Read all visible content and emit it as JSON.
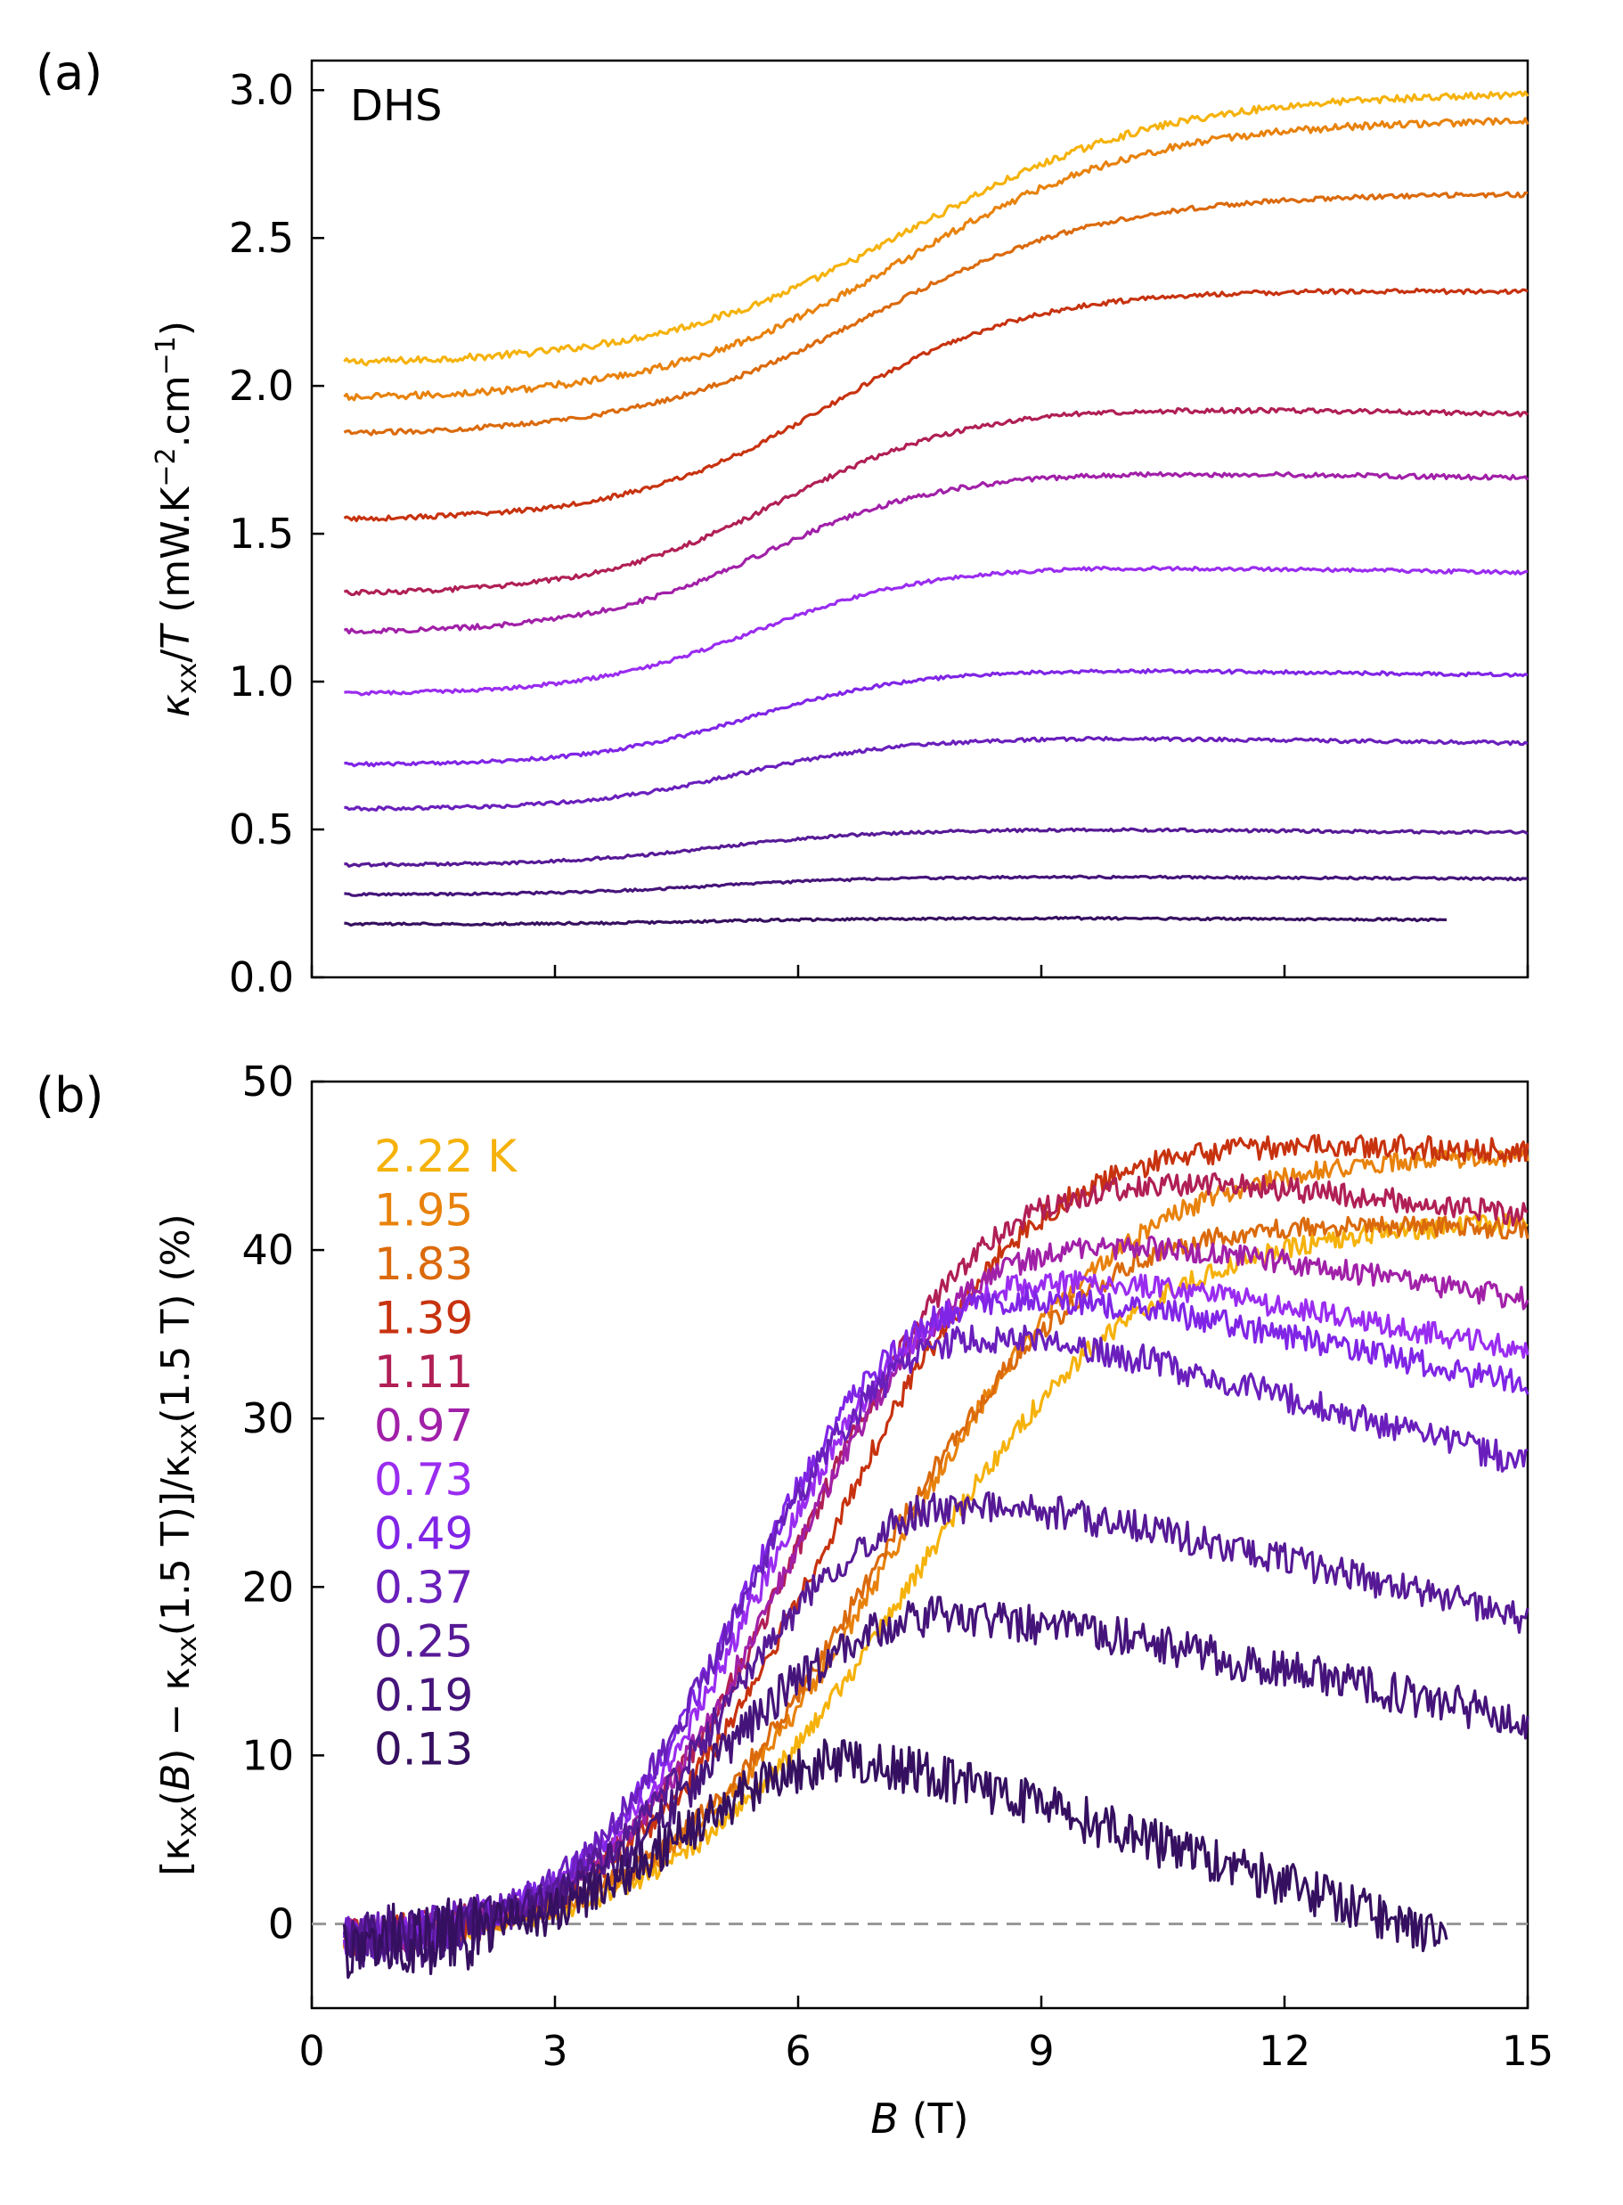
{
  "chart_data": [
    {
      "panel_label": "(a)",
      "type": "line",
      "annotation": "DHS",
      "xlim": [
        0,
        15
      ],
      "ylim": [
        0.0,
        3.1
      ],
      "xticks": [
        0,
        3,
        6,
        9,
        12,
        15
      ],
      "yticks": [
        "0.0",
        "0.5",
        "1.0",
        "1.5",
        "2.0",
        "2.5",
        "3.0"
      ],
      "ylabel_parts": [
        "κ",
        "xx",
        "/",
        "T",
        " (mW.K",
        "−2",
        ".cm",
        "−1",
        ")"
      ],
      "series": [
        {
          "name": "2.22 K",
          "color": "#f5b20b",
          "base": 2.08,
          "amp": 0.91,
          "center": 7.4,
          "width": 1.55,
          "droop": 0.0,
          "noise": 0.012,
          "end": 15
        },
        {
          "name": "1.95",
          "color": "#e8820c",
          "base": 1.96,
          "amp": 0.94,
          "center": 7.3,
          "width": 1.5,
          "droop": 0.0,
          "noise": 0.012,
          "end": 15
        },
        {
          "name": "1.83",
          "color": "#db6a0c",
          "base": 1.84,
          "amp": 0.81,
          "center": 6.9,
          "width": 1.45,
          "droop": 0.0,
          "noise": 0.008,
          "end": 15
        },
        {
          "name": "1.39",
          "color": "#c7320f",
          "base": 1.55,
          "amp": 0.78,
          "center": 6.4,
          "width": 1.25,
          "droop": 0.03,
          "noise": 0.008,
          "end": 15
        },
        {
          "name": "1.11",
          "color": "#b01f55",
          "base": 1.3,
          "amp": 0.63,
          "center": 5.8,
          "width": 1.15,
          "droop": 0.07,
          "noise": 0.008,
          "end": 15
        },
        {
          "name": "0.97",
          "color": "#a120a8",
          "base": 1.17,
          "amp": 0.54,
          "center": 5.6,
          "width": 1.1,
          "droop": 0.06,
          "noise": 0.008,
          "end": 15
        },
        {
          "name": "0.73",
          "color": "#9a2cf0",
          "base": 0.96,
          "amp": 0.43,
          "center": 5.5,
          "width": 1.05,
          "droop": 0.06,
          "noise": 0.006,
          "end": 15
        },
        {
          "name": "0.49",
          "color": "#8025e6",
          "base": 0.72,
          "amp": 0.32,
          "center": 5.4,
          "width": 1.0,
          "droop": 0.05,
          "noise": 0.006,
          "end": 15
        },
        {
          "name": "0.37",
          "color": "#6a1fbc",
          "base": 0.57,
          "amp": 0.24,
          "center": 5.3,
          "width": 1.0,
          "droop": 0.05,
          "noise": 0.006,
          "end": 15
        },
        {
          "name": "0.25",
          "color": "#571a96",
          "base": 0.38,
          "amp": 0.12,
          "center": 5.0,
          "width": 1.0,
          "droop": 0.03,
          "noise": 0.005,
          "end": 15
        },
        {
          "name": "0.19",
          "color": "#45147a",
          "base": 0.28,
          "amp": 0.06,
          "center": 5.0,
          "width": 1.0,
          "droop": 0.02,
          "noise": 0.004,
          "end": 15
        },
        {
          "name": "0.13",
          "color": "#361060",
          "base": 0.18,
          "amp": 0.02,
          "center": 5.0,
          "width": 1.0,
          "droop": 0.02,
          "noise": 0.004,
          "end": 14.0
        }
      ]
    },
    {
      "panel_label": "(b)",
      "type": "line",
      "xlim": [
        0,
        15
      ],
      "ylim": [
        -5,
        50
      ],
      "xticks": [
        0,
        3,
        6,
        9,
        12,
        15
      ],
      "yticks": [
        0,
        10,
        20,
        30,
        40,
        50
      ],
      "xlabel_parts": [
        "B",
        " (T)"
      ],
      "ylabel_parts": [
        "[κ",
        "xx",
        "(",
        "B",
        ") − κ",
        "xx",
        "(1.5 T)]/κ",
        "xx",
        "(1.5 T) (%)"
      ],
      "reference_line": 0,
      "legend": [
        "2.22 K",
        "1.95",
        "1.83",
        "1.39",
        "1.11",
        "0.97",
        "0.73",
        "0.49",
        "0.37",
        "0.25",
        "0.19",
        "0.13"
      ],
      "series": [
        {
          "name": "2.22 K",
          "color": "#f5b20b",
          "peak": 43,
          "rise_center": 7.4,
          "rise_width": 1.45,
          "fall": 0.0,
          "noise": 0.6,
          "end": 15
        },
        {
          "name": "1.95",
          "color": "#e8820c",
          "peak": 47,
          "rise_center": 7.2,
          "rise_width": 1.4,
          "fall": 0.0,
          "noise": 0.6,
          "end": 15
        },
        {
          "name": "1.83",
          "color": "#db6a0c",
          "peak": 44,
          "rise_center": 6.9,
          "rise_width": 1.35,
          "fall": 0.3,
          "noise": 0.6,
          "end": 15
        },
        {
          "name": "1.39",
          "color": "#c7320f",
          "peak": 48.5,
          "rise_center": 6.4,
          "rise_width": 1.25,
          "fall": 0.25,
          "noise": 0.7,
          "end": 15
        },
        {
          "name": "1.11",
          "color": "#b01f55",
          "peak": 47,
          "rise_center": 6.0,
          "rise_width": 1.15,
          "fall": 0.6,
          "noise": 0.7,
          "end": 15
        },
        {
          "name": "0.97",
          "color": "#a120a8",
          "peak": 43.5,
          "rise_center": 5.8,
          "rise_width": 1.1,
          "fall": 0.8,
          "noise": 0.7,
          "end": 15
        },
        {
          "name": "0.73",
          "color": "#9a2cf0",
          "peak": 41.5,
          "rise_center": 5.5,
          "rise_width": 1.05,
          "fall": 0.9,
          "noise": 0.7,
          "end": 15
        },
        {
          "name": "0.49",
          "color": "#8025e6",
          "peak": 40.5,
          "rise_center": 5.3,
          "rise_width": 1.0,
          "fall": 1.0,
          "noise": 0.8,
          "end": 15
        },
        {
          "name": "0.37",
          "color": "#6a1fbc",
          "peak": 38.5,
          "rise_center": 5.2,
          "rise_width": 1.0,
          "fall": 1.35,
          "noise": 0.9,
          "end": 15
        },
        {
          "name": "0.25",
          "color": "#571a96",
          "peak": 28,
          "rise_center": 5.1,
          "rise_width": 1.0,
          "fall": 1.15,
          "noise": 1.0,
          "end": 15
        },
        {
          "name": "0.19",
          "color": "#45147a",
          "peak": 21,
          "rise_center": 4.9,
          "rise_width": 1.0,
          "fall": 1.0,
          "noise": 1.2,
          "end": 15
        },
        {
          "name": "0.13",
          "color": "#361060",
          "peak": 12,
          "rise_center": 4.4,
          "rise_width": 0.9,
          "fall": 1.55,
          "noise": 1.4,
          "end": 14.0
        }
      ]
    }
  ]
}
